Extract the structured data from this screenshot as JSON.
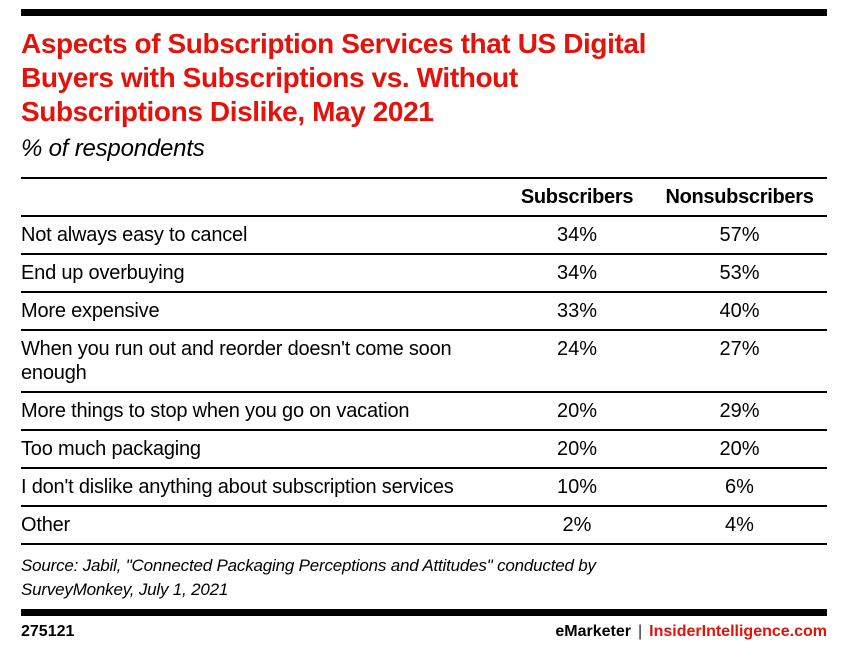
{
  "brand": {
    "accent_red": "#e3120b",
    "bar_black": "#000000"
  },
  "header": {
    "title_lines": [
      "Aspects of Subscription Services that US Digital",
      "Buyers with Subscriptions vs. Without",
      "Subscriptions Dislike, May 2021"
    ],
    "subtitle": "% of respondents"
  },
  "chart_data": {
    "type": "table",
    "title": "Aspects of Subscription Services that US Digital Buyers with Subscriptions vs. Without Subscriptions Dislike, May 2021",
    "subtitle": "% of respondents",
    "unit": "% of respondents",
    "categories": [
      "Not always easy to cancel",
      "End up overbuying",
      "More expensive",
      "When you run out and reorder doesn't come soon enough",
      "More things to stop when you go on vacation",
      "Too much packaging",
      "I don't dislike anything about subscription services",
      "Other"
    ],
    "series": [
      {
        "name": "Subscribers",
        "values": [
          34,
          34,
          33,
          24,
          20,
          20,
          10,
          2
        ]
      },
      {
        "name": "Nonsubscribers",
        "values": [
          57,
          53,
          40,
          27,
          29,
          20,
          6,
          4
        ]
      }
    ]
  },
  "table": {
    "col_headers": {
      "subscribers": "Subscribers",
      "nonsubscribers": "Nonsubscribers"
    },
    "rows": [
      {
        "label": "Not always easy to cancel",
        "sub": "34%",
        "non": "57%"
      },
      {
        "label": "End up overbuying",
        "sub": "34%",
        "non": "53%"
      },
      {
        "label": "More expensive",
        "sub": "33%",
        "non": "40%"
      },
      {
        "label": "When you run out and reorder doesn't come soon enough",
        "sub": "24%",
        "non": "27%"
      },
      {
        "label": "More things to stop when you go on vacation",
        "sub": "20%",
        "non": "29%"
      },
      {
        "label": "Too much packaging",
        "sub": "20%",
        "non": "20%"
      },
      {
        "label": "I don't dislike anything about subscription services",
        "sub": "10%",
        "non": "6%"
      },
      {
        "label": "Other",
        "sub": "2%",
        "non": "4%"
      }
    ]
  },
  "footer": {
    "source_lines": [
      "Source: Jabil, \"Connected Packaging Perceptions and Attitudes\" conducted by",
      "SurveyMonkey, July 1, 2021"
    ],
    "chart_id": "275121",
    "brand_left": "eMarketer",
    "separator": "|",
    "brand_right": "InsiderIntelligence.com"
  }
}
